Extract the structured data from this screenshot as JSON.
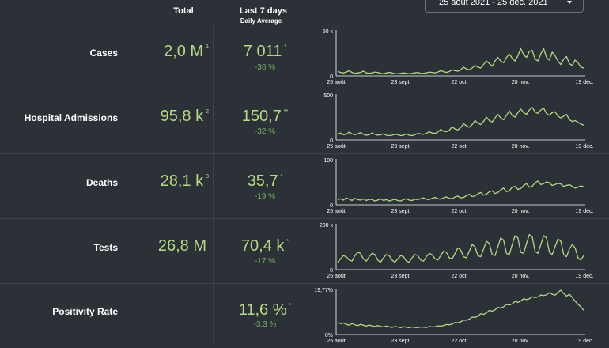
{
  "header": {
    "total": "Total",
    "last7": "Last 7 days",
    "daily_average": "Daily Average"
  },
  "date_range": "25 août 2021 - 25 déc. 2021",
  "x_tick_labels": [
    "25 août",
    "23 sept.",
    "22 oct.",
    "20 nov.",
    "19 déc."
  ],
  "accent_color": "#b5d889",
  "change_color": "#7bae69",
  "icons": {
    "date_dropdown": "chevron-down-icon"
  },
  "rows": [
    {
      "label": "Cases",
      "total": "2,0 M",
      "total_note": "1",
      "avg": "7 011",
      "avg_note": "*",
      "change": "-36 %"
    },
    {
      "label": "Hospital Admissions",
      "total": "95,8 k",
      "total_note": "2",
      "avg": "150,7",
      "avg_note": "**",
      "change": "-32 %"
    },
    {
      "label": "Deaths",
      "total": "28,1 k",
      "total_note": "3",
      "avg": "35,7",
      "avg_note": "*",
      "change": "-19 %"
    },
    {
      "label": "Tests",
      "total": "26,8 M",
      "total_note": "",
      "avg": "70,4 k",
      "avg_note": "*",
      "change": "-17 %"
    },
    {
      "label": "Positivity Rate",
      "total": "",
      "total_note": "",
      "avg": "11,6 %",
      "avg_note": "*",
      "change": "-3,3 %"
    }
  ],
  "chart_data": [
    {
      "type": "line",
      "title": "Cases",
      "x_labels": [
        "25 août",
        "23 sept.",
        "22 oct.",
        "20 nov.",
        "19 déc."
      ],
      "y_tick_labels": [
        "0",
        "50 k"
      ],
      "ylim": [
        0,
        50000
      ],
      "values": [
        4000,
        3000,
        2500,
        3500,
        5000,
        3000,
        2000,
        2500,
        3000,
        4500,
        2500,
        2000,
        2500,
        3500,
        3000,
        2000,
        1500,
        2500,
        3000,
        2500,
        1500,
        1500,
        2000,
        2500,
        2000,
        1500,
        2000,
        2500,
        3000,
        2000,
        2000,
        2500,
        3500,
        3000,
        2500,
        3500,
        5000,
        4000,
        3000,
        4000,
        6000,
        5000,
        4500,
        6000,
        9000,
        7000,
        6000,
        8000,
        11000,
        9000,
        8000,
        12000,
        16000,
        13000,
        10000,
        16000,
        20000,
        16000,
        14000,
        20000,
        24000,
        19000,
        16000,
        22000,
        30000,
        23000,
        20000,
        27000,
        28000,
        18000,
        16000,
        24000,
        30000,
        20000,
        17000,
        26000,
        22000,
        16000,
        12000,
        18000,
        21000,
        13000,
        11000,
        17000,
        14000,
        9000,
        8000
      ]
    },
    {
      "type": "line",
      "title": "Hospital Admissions",
      "x_labels": [
        "25 août",
        "23 sept.",
        "22 oct.",
        "20 nov.",
        "19 déc."
      ],
      "y_tick_labels": [
        "0",
        "500"
      ],
      "ylim": [
        0,
        500
      ],
      "values": [
        60,
        70,
        50,
        55,
        80,
        60,
        50,
        60,
        75,
        55,
        45,
        50,
        70,
        55,
        45,
        50,
        60,
        45,
        40,
        45,
        55,
        50,
        40,
        45,
        60,
        45,
        40,
        50,
        65,
        60,
        55,
        65,
        85,
        70,
        65,
        80,
        110,
        90,
        85,
        100,
        140,
        115,
        105,
        130,
        175,
        150,
        135,
        165,
        210,
        180,
        165,
        200,
        250,
        210,
        195,
        240,
        280,
        240,
        220,
        270,
        320,
        270,
        250,
        300,
        340,
        300,
        280,
        330,
        360,
        310,
        290,
        330,
        350,
        290,
        270,
        300,
        310,
        260,
        240,
        260,
        280,
        220,
        200,
        210,
        190,
        170,
        160
      ]
    },
    {
      "type": "line",
      "title": "Deaths",
      "x_labels": [
        "25 août",
        "23 sept.",
        "22 oct.",
        "20 nov.",
        "19 déc."
      ],
      "y_tick_labels": [
        "0",
        "100"
      ],
      "ylim": [
        0,
        100
      ],
      "values": [
        10,
        12,
        9,
        14,
        11,
        8,
        13,
        10,
        9,
        12,
        8,
        11,
        10,
        7,
        9,
        12,
        8,
        10,
        7,
        9,
        11,
        8,
        7,
        10,
        12,
        9,
        8,
        11,
        10,
        12,
        14,
        11,
        10,
        13,
        15,
        12,
        11,
        14,
        16,
        13,
        12,
        16,
        18,
        14,
        15,
        19,
        22,
        17,
        18,
        23,
        26,
        20,
        22,
        28,
        30,
        24,
        26,
        32,
        36,
        28,
        30,
        38,
        40,
        33,
        35,
        42,
        46,
        38,
        40,
        48,
        52,
        44,
        46,
        50,
        48,
        42,
        44,
        47,
        45,
        40,
        42,
        44,
        40,
        36,
        38,
        41,
        39
      ]
    },
    {
      "type": "line",
      "title": "Tests",
      "x_labels": [
        "25 août",
        "23 sept.",
        "22 oct.",
        "20 nov.",
        "19 déc."
      ],
      "y_tick_labels": [
        "0",
        "200 k"
      ],
      "ylim": [
        0,
        200000
      ],
      "values": [
        30000,
        45000,
        60000,
        55000,
        40000,
        35000,
        60000,
        75000,
        70000,
        45000,
        35000,
        55000,
        70000,
        65000,
        40000,
        30000,
        50000,
        65000,
        60000,
        40000,
        30000,
        45000,
        60000,
        55000,
        35000,
        30000,
        50000,
        65000,
        60000,
        40000,
        35000,
        55000,
        70000,
        65000,
        45000,
        40000,
        60000,
        80000,
        75000,
        50000,
        45000,
        70000,
        95000,
        85000,
        55000,
        50000,
        80000,
        110000,
        100000,
        60000,
        55000,
        90000,
        125000,
        115000,
        65000,
        60000,
        100000,
        140000,
        130000,
        70000,
        65000,
        110000,
        150000,
        140000,
        75000,
        70000,
        115000,
        155000,
        145000,
        80000,
        70000,
        110000,
        150000,
        140000,
        75000,
        65000,
        100000,
        135000,
        125000,
        65000,
        55000,
        90000,
        110000,
        95000,
        50000,
        40000,
        60000
      ]
    },
    {
      "type": "line",
      "title": "Positivity Rate",
      "x_labels": [
        "25 août",
        "23 sept.",
        "22 oct.",
        "20 nov.",
        "19 déc."
      ],
      "y_tick_labels": [
        "0%",
        "19,77%"
      ],
      "ylim": [
        0,
        19.77
      ],
      "values": [
        5.0,
        4.5,
        4.8,
        4.2,
        3.8,
        4.5,
        4.0,
        3.6,
        4.2,
        3.8,
        3.4,
        3.9,
        3.5,
        3.2,
        3.6,
        3.3,
        3.0,
        3.4,
        3.1,
        2.8,
        3.2,
        3.0,
        2.7,
        3.1,
        2.9,
        2.7,
        3.0,
        2.8,
        2.7,
        3.0,
        2.9,
        2.8,
        3.2,
        3.0,
        3.1,
        3.5,
        3.4,
        3.6,
        4.1,
        4.0,
        4.3,
        5.0,
        4.9,
        5.3,
        6.1,
        6.0,
        6.5,
        7.4,
        7.3,
        7.8,
        8.9,
        8.6,
        9.3,
        10.4,
        10.1,
        10.7,
        11.8,
        11.5,
        12.0,
        13.1,
        12.8,
        13.3,
        14.4,
        14.0,
        14.6,
        15.6,
        15.2,
        15.6,
        16.5,
        16.1,
        16.4,
        17.3,
        17.0,
        17.4,
        18.3,
        17.6,
        17.2,
        18.5,
        19.4,
        18.0,
        16.8,
        17.6,
        16.2,
        14.5,
        13.2,
        12.0,
        10.5
      ]
    }
  ]
}
